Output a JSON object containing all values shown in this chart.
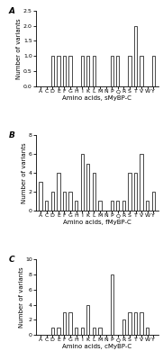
{
  "categories": [
    "A",
    "C",
    "D",
    "E",
    "F",
    "G",
    "H",
    "I",
    "K",
    "L",
    "M",
    "N",
    "P",
    "Q",
    "R",
    "S",
    "T",
    "V",
    "W",
    "Y"
  ],
  "panel_A": {
    "values": [
      0,
      0,
      1,
      1,
      1,
      1,
      0,
      1,
      1,
      1,
      0,
      0,
      1,
      1,
      0,
      1,
      2,
      1,
      0,
      1
    ],
    "ylabel": "Number of variants",
    "xlabel": "Amino acids, sMyBP-C",
    "label": "A",
    "ylim": [
      0,
      2.5
    ],
    "yticks": [
      0.0,
      0.5,
      1.0,
      1.5,
      2.0,
      2.5
    ]
  },
  "panel_B": {
    "values": [
      3,
      1,
      2,
      4,
      2,
      2,
      1,
      6,
      5,
      4,
      1,
      0,
      1,
      1,
      1,
      4,
      4,
      6,
      1,
      2
    ],
    "ylabel": "Number of variants",
    "xlabel": "Amino acids, fMyBP-C",
    "label": "B",
    "ylim": [
      0,
      8
    ],
    "yticks": [
      0,
      2,
      4,
      6,
      8
    ]
  },
  "panel_C": {
    "values": [
      0,
      0,
      1,
      1,
      3,
      3,
      1,
      1,
      4,
      1,
      1,
      0,
      8,
      0,
      2,
      3,
      3,
      3,
      1,
      0
    ],
    "ylabel": "Number of variants",
    "xlabel": "Amino acids, cMyBP-C",
    "label": "C",
    "ylim": [
      0,
      10
    ],
    "yticks": [
      0,
      2,
      4,
      6,
      8,
      10
    ]
  },
  "bar_color": "white",
  "bar_edgecolor": "black",
  "bar_linewidth": 0.5,
  "bar_width": 0.5,
  "background_color": "white",
  "fontsize_label": 5.0,
  "fontsize_tick": 4.5,
  "fontsize_panel": 6.5
}
